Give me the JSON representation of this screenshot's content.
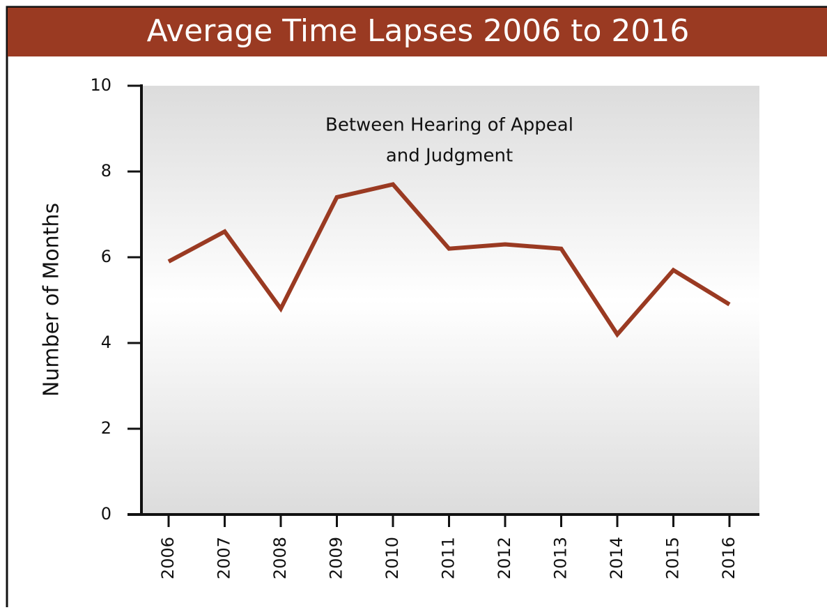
{
  "chart_data": {
    "type": "line",
    "title": "Average Time Lapses 2006 to 2016",
    "annotation": [
      "Between Hearing of Appeal",
      "and Judgment"
    ],
    "y_label": "Number of Months",
    "categories": [
      "2006",
      "2007",
      "2008",
      "2009",
      "2010",
      "2011",
      "2012",
      "2013",
      "2014",
      "2015",
      "2016"
    ],
    "values": [
      5.9,
      6.6,
      4.8,
      7.4,
      7.7,
      6.2,
      6.3,
      6.2,
      4.2,
      5.7,
      4.9
    ],
    "color": "#9a3a22",
    "ylim": [
      0,
      10
    ],
    "yticks": [
      0,
      2,
      4,
      6,
      8,
      10
    ],
    "grid": false
  }
}
